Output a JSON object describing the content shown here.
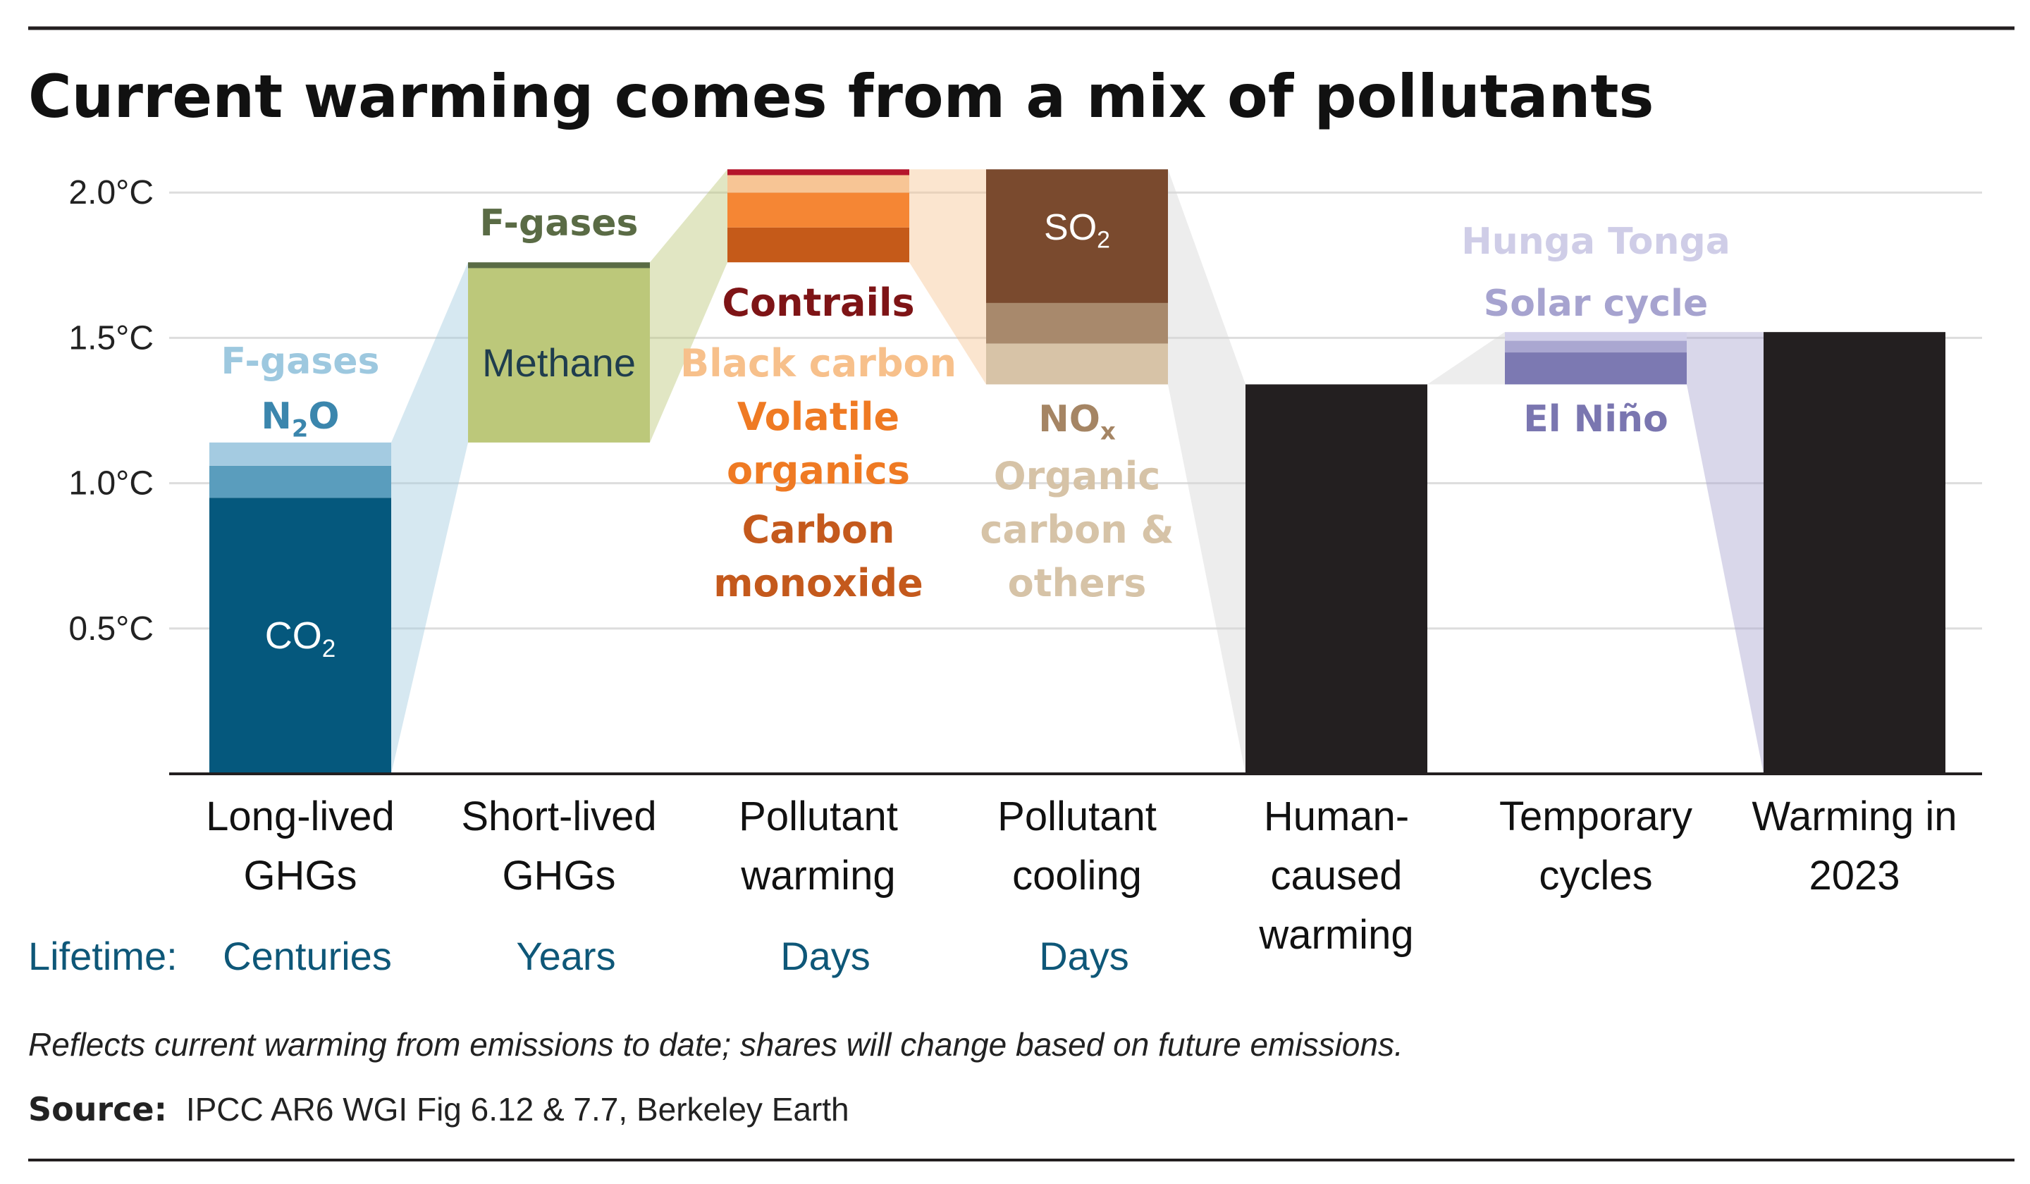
{
  "colors": {
    "co2": "#05587d",
    "n2o": "#5a9dbd",
    "fgases_long": "#a4cbe1",
    "methane": "#bcc87a",
    "fgases_short": "#5a6b45",
    "carbon_monoxide": "#c55a19",
    "volatile_organics": "#f58634",
    "black_carbon": "#f7c595",
    "contrails": "#b5152b",
    "so2": "#7a4a2e",
    "nox": "#a8896c",
    "organic_carbon": "#d7c3a7",
    "human": "#231f20",
    "el_nino": "#7c79b2",
    "solar": "#aaa7d1",
    "hunga": "#d3d1ea",
    "label_fgases_long": "#9dc8df",
    "label_n2o": "#3b86ad",
    "label_fgases_short": "#5a6b45",
    "label_methane": "#1f3d4e",
    "label_contrails": "#7e1416",
    "label_black_carbon": "#f7c08b",
    "label_volatile": "#ef7a23",
    "label_co": "#c4591c",
    "label_nox": "#a58564",
    "label_organic": "#d6c3a7",
    "label_hunga": "#cfcde7",
    "label_solar": "#a6a3cf",
    "label_elnino": "#7a76b0",
    "lifetime": "#0e5778",
    "connector": "#d6d6d6",
    "grid": "#dddddd"
  },
  "title": "Current warming comes from a mix of pollutants",
  "note": "Reflects current warming from emissions to date; shares will change based on future emissions.",
  "source_label": "Source:",
  "source_text": "IPCC AR6 WGI Fig 6.12 & 7.7, Berkeley Earth",
  "lifetime_label": "Lifetime:",
  "lifetimes": [
    "Centuries",
    "Years",
    "Days",
    "Days"
  ],
  "chart_data": {
    "type": "bar",
    "subtype": "waterfall",
    "unit": "°C",
    "ylim": [
      0,
      2.1
    ],
    "y_ticks": [
      0.5,
      1.0,
      1.5,
      2.0
    ],
    "y_tick_labels": [
      "0.5°C",
      "1.0°C",
      "1.5°C",
      "2.0°C"
    ],
    "grid": true,
    "categories": [
      [
        "Long-lived",
        "GHGs"
      ],
      [
        "Short-lived",
        "GHGs"
      ],
      [
        "Pollutant",
        "warming"
      ],
      [
        "Pollutant",
        "cooling"
      ],
      [
        "Human-",
        "caused",
        "warming"
      ],
      [
        "Temporary",
        "cycles"
      ],
      [
        "Warming in",
        "2023"
      ]
    ],
    "bars": [
      {
        "category_index": 0,
        "segments": [
          {
            "name": "CO₂",
            "from": 0.0,
            "to": 0.95,
            "color_key": "co2"
          },
          {
            "name": "N₂O",
            "from": 0.95,
            "to": 1.06,
            "color_key": "n2o"
          },
          {
            "name": "F-gases",
            "from": 1.06,
            "to": 1.14,
            "color_key": "fgases_long"
          }
        ]
      },
      {
        "category_index": 1,
        "segments": [
          {
            "name": "Methane",
            "from": 1.14,
            "to": 1.74,
            "color_key": "methane"
          },
          {
            "name": "F-gases",
            "from": 1.74,
            "to": 1.76,
            "color_key": "fgases_short"
          }
        ]
      },
      {
        "category_index": 2,
        "segments": [
          {
            "name": "Carbon monoxide",
            "from": 1.76,
            "to": 1.88,
            "color_key": "carbon_monoxide"
          },
          {
            "name": "Volatile organics",
            "from": 1.88,
            "to": 2.0,
            "color_key": "volatile_organics"
          },
          {
            "name": "Black carbon",
            "from": 2.0,
            "to": 2.06,
            "color_key": "black_carbon"
          },
          {
            "name": "Contrails",
            "from": 2.06,
            "to": 2.08,
            "color_key": "contrails"
          }
        ]
      },
      {
        "category_index": 3,
        "segments": [
          {
            "name": "SO₂",
            "from": 1.62,
            "to": 2.08,
            "color_key": "so2"
          },
          {
            "name": "NOₓ",
            "from": 1.48,
            "to": 1.62,
            "color_key": "nox"
          },
          {
            "name": "Organic carbon & others",
            "from": 1.34,
            "to": 1.48,
            "color_key": "organic_carbon"
          }
        ]
      },
      {
        "category_index": 4,
        "segments": [
          {
            "name": "Human-caused warming",
            "from": 0.0,
            "to": 1.34,
            "color_key": "human"
          }
        ]
      },
      {
        "category_index": 5,
        "segments": [
          {
            "name": "El Niño",
            "from": 1.34,
            "to": 1.45,
            "color_key": "el_nino"
          },
          {
            "name": "Solar cycle",
            "from": 1.45,
            "to": 1.49,
            "color_key": "solar"
          },
          {
            "name": "Hunga Tonga",
            "from": 1.49,
            "to": 1.52,
            "color_key": "hunga"
          }
        ]
      },
      {
        "category_index": 6,
        "segments": [
          {
            "name": "Warming in 2023",
            "from": 0.0,
            "to": 1.52,
            "color_key": "human"
          }
        ]
      }
    ],
    "labels": {
      "co2": "CO",
      "co2_sub": "2",
      "n2o_a": "N",
      "n2o_sub": "2",
      "n2o_b": "O",
      "fgases_long": "F-gases",
      "methane": "Methane",
      "fgases_short": "F-gases",
      "contrails": "Contrails",
      "black_carbon": "Black carbon",
      "volatile_1": "Volatile",
      "volatile_2": "organics",
      "co_1": "Carbon",
      "co_2": "monoxide",
      "so2": "SO",
      "so2_sub": "2",
      "nox": "NO",
      "nox_sub": "x",
      "organic_1": "Organic",
      "organic_2": "carbon &",
      "organic_3": "others",
      "hunga": "Hunga Tonga",
      "solar": "Solar cycle",
      "el_nino": "El Niño"
    }
  }
}
